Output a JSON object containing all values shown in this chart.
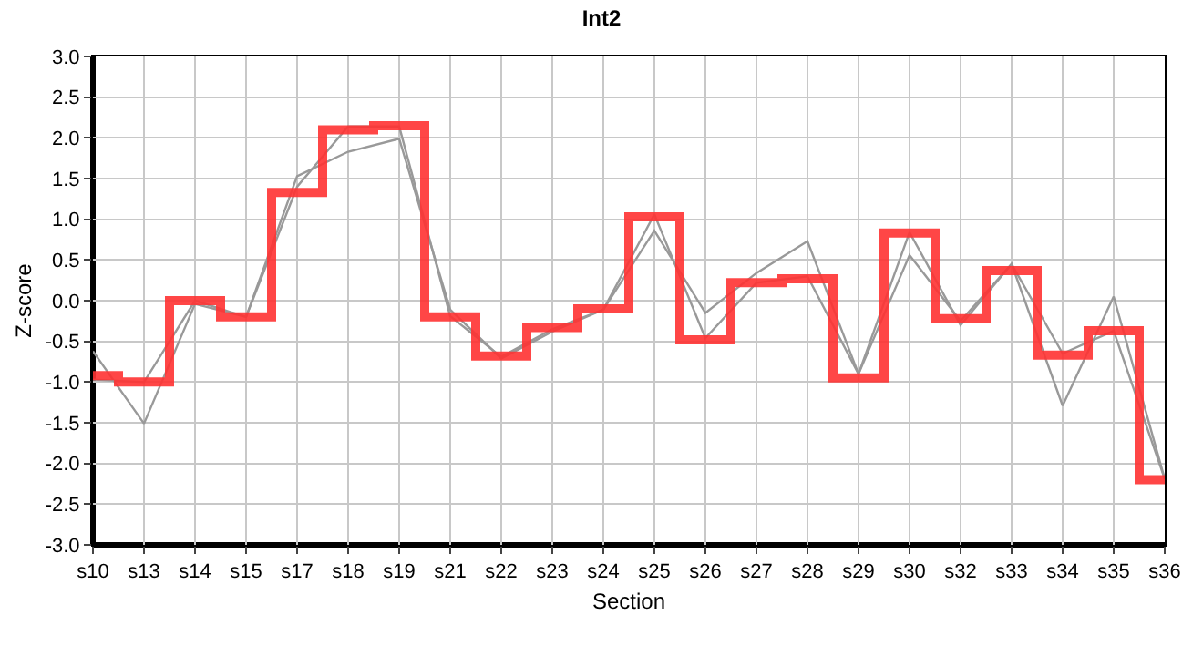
{
  "chart_data": {
    "type": "line",
    "title": "Int2",
    "xlabel": "Section",
    "ylabel": "Z-score",
    "categories": [
      "s10",
      "s13",
      "s14",
      "s15",
      "s17",
      "s18",
      "s19",
      "s21",
      "s22",
      "s23",
      "s24",
      "s25",
      "s26",
      "s27",
      "s28",
      "s29",
      "s30",
      "s32",
      "s33",
      "s34",
      "s35",
      "s36"
    ],
    "series": [
      {
        "color": "#999999",
        "values": [
          -0.62,
          -1.51,
          -0.04,
          -0.2,
          1.53,
          1.83,
          1.99,
          -0.11,
          -0.71,
          -0.38,
          -0.11,
          0.86,
          -0.15,
          0.34,
          0.73,
          -0.9,
          0.56,
          -0.25,
          0.45,
          -1.29,
          0.05,
          -2.19
        ]
      },
      {
        "color": "#999999",
        "values": [
          -0.97,
          -1.0,
          0.0,
          -0.2,
          1.4,
          2.14,
          2.14,
          -0.19,
          -0.69,
          -0.35,
          -0.11,
          1.06,
          -0.46,
          0.22,
          0.3,
          -0.9,
          0.84,
          -0.3,
          0.45,
          -0.65,
          -0.37,
          -2.19
        ]
      },
      {
        "type": "step",
        "color": "#ff3333",
        "values": [
          -0.92,
          -1.0,
          0.0,
          -0.2,
          1.33,
          2.1,
          2.15,
          -0.2,
          -0.68,
          -0.33,
          -0.1,
          1.03,
          -0.48,
          0.22,
          0.27,
          -0.95,
          0.83,
          -0.22,
          0.37,
          -0.67,
          -0.37,
          -2.2
        ]
      }
    ],
    "ylim": [
      -3.0,
      3.0
    ],
    "yticks": [
      {
        "value": -3,
        "label": "-3.0"
      },
      {
        "value": -2.5,
        "label": "-2.5"
      },
      {
        "value": -2,
        "label": "-2.0"
      },
      {
        "value": -1.5,
        "label": "-1.5"
      },
      {
        "value": -1,
        "label": "-1.0"
      },
      {
        "value": -0.5,
        "label": "-0.5"
      },
      {
        "value": 0,
        "label": "0.0"
      },
      {
        "value": 0.5,
        "label": "0.5"
      },
      {
        "value": 1,
        "label": "1.0"
      },
      {
        "value": 1.5,
        "label": "1.5"
      },
      {
        "value": 2,
        "label": "2.0"
      },
      {
        "value": 2.5,
        "label": "2.5"
      },
      {
        "value": 3,
        "label": "3.0"
      }
    ],
    "grid": true,
    "marker": "none"
  }
}
